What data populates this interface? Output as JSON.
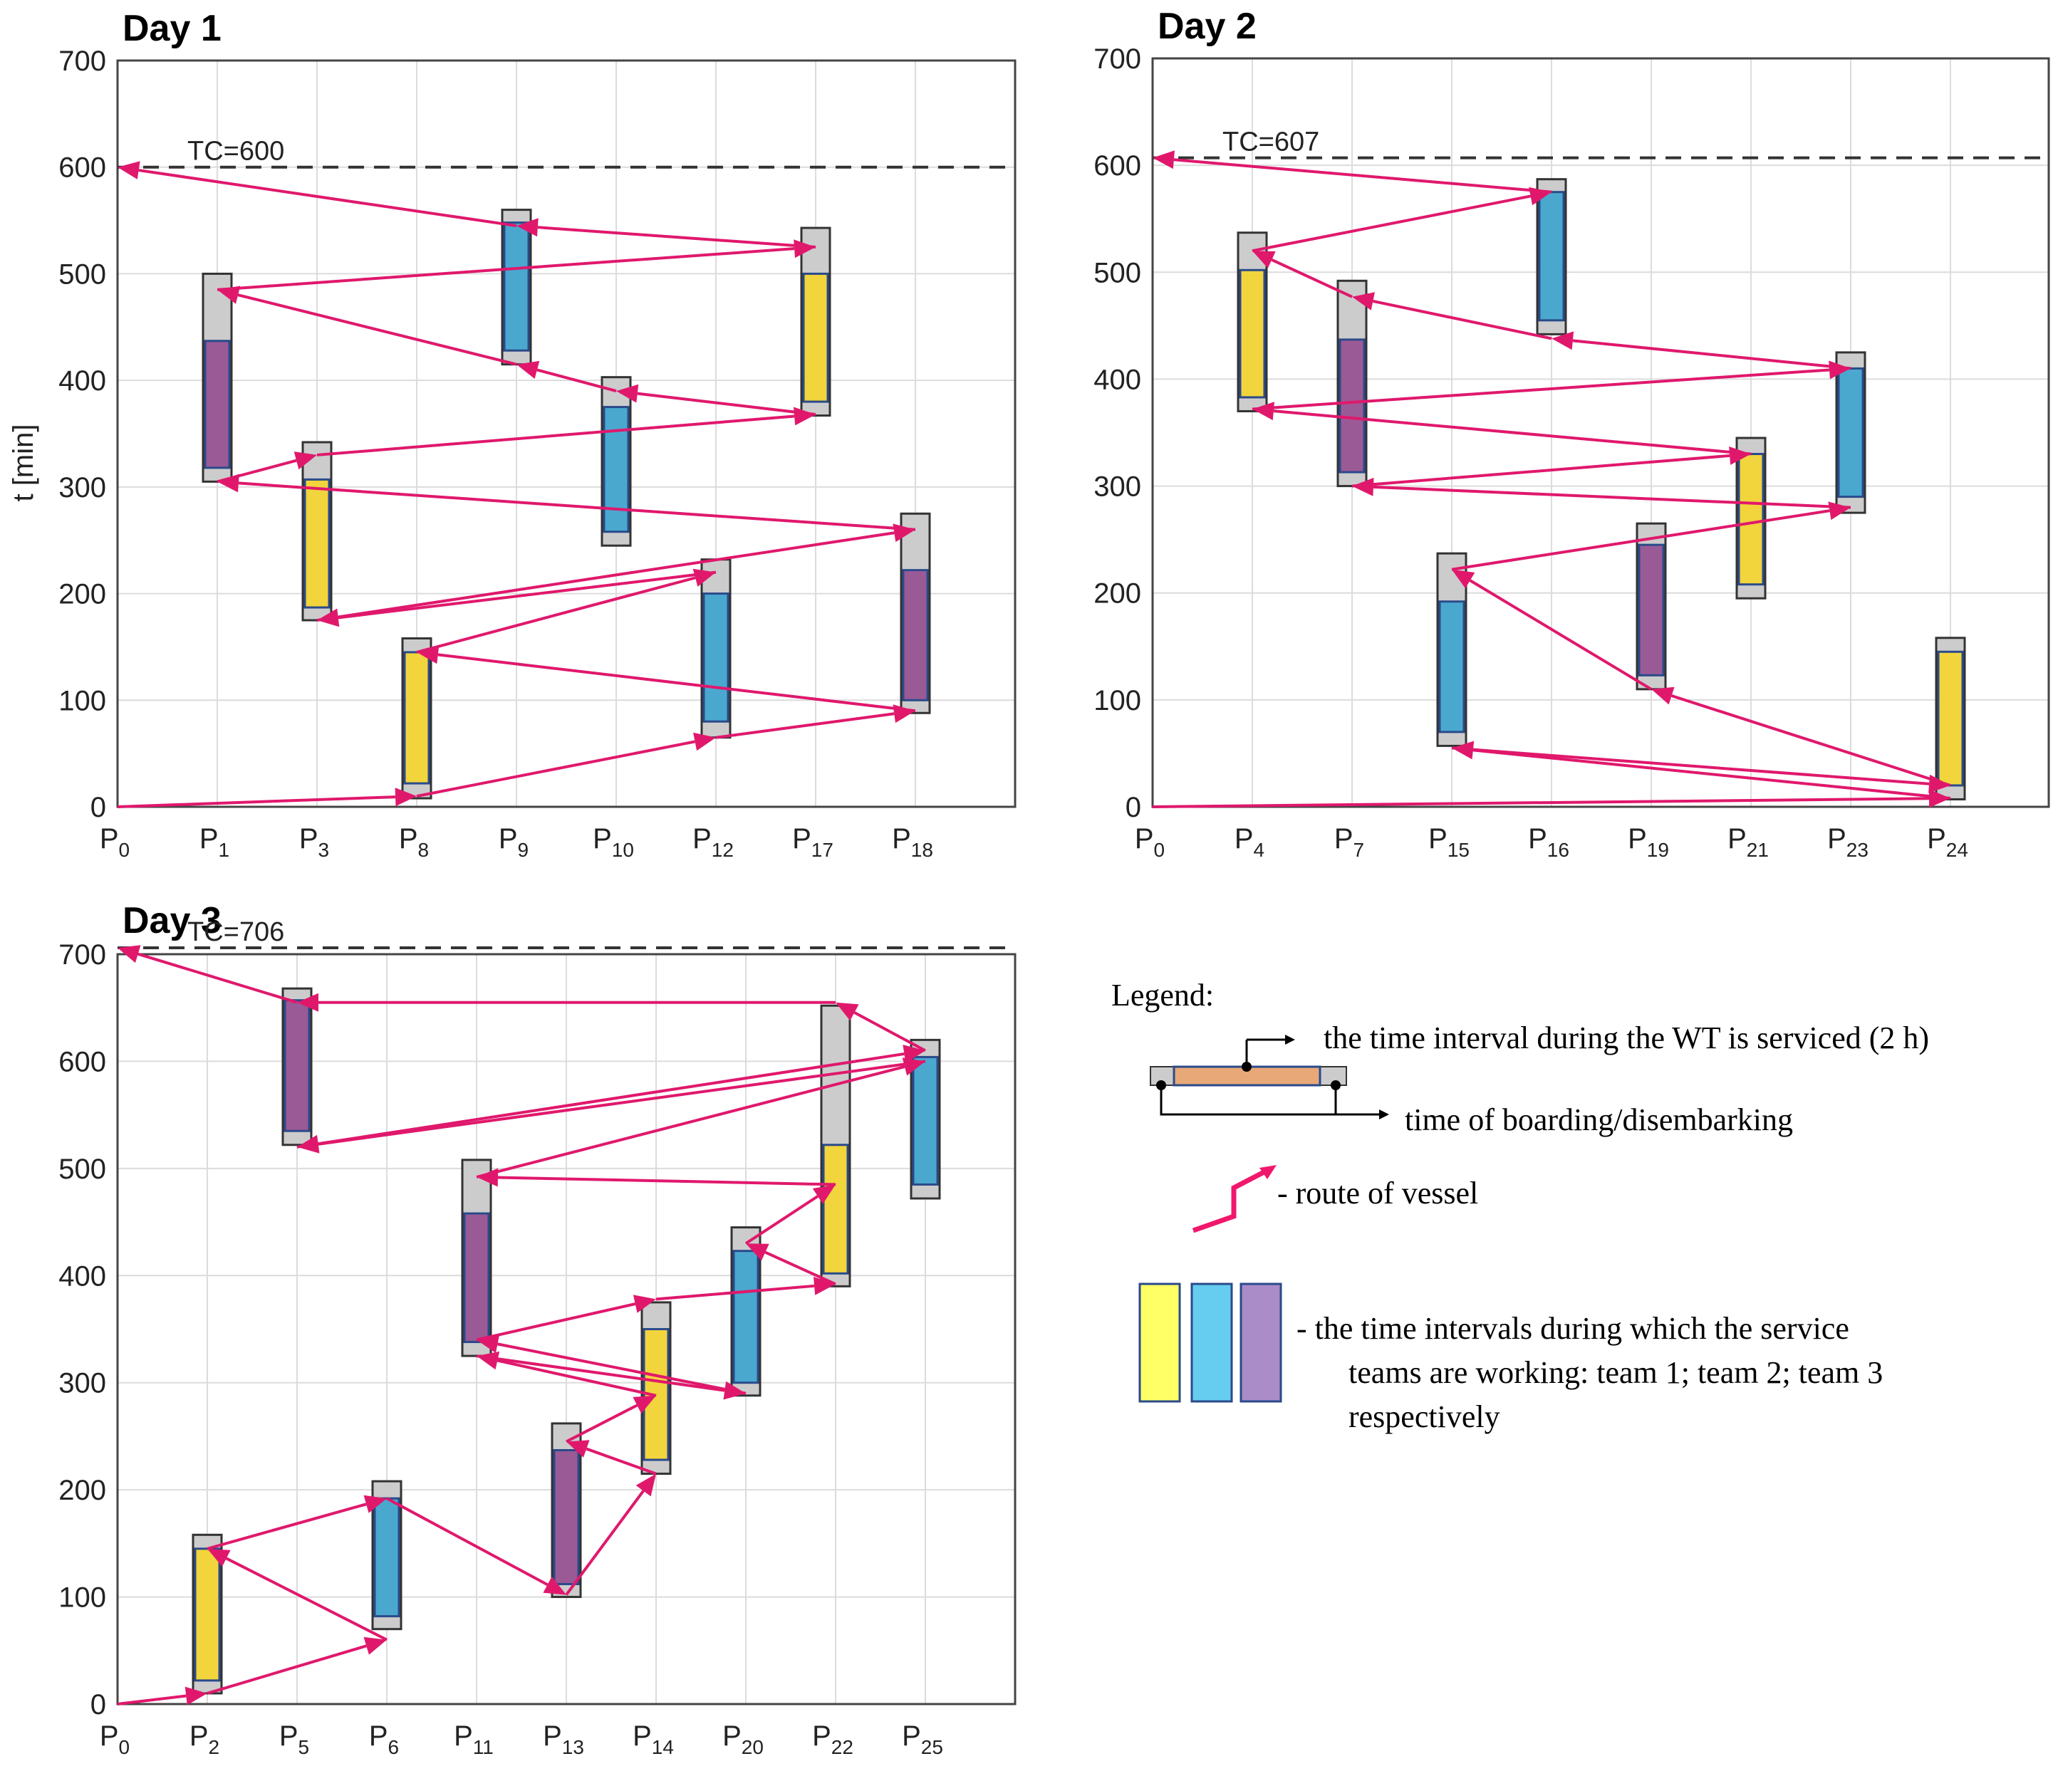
{
  "chart_data": [
    {
      "type": "gantt-route",
      "title": "Day 1",
      "ylabel": "t [min]",
      "ylim": [
        0,
        700
      ],
      "yticks": [
        0,
        100,
        200,
        300,
        400,
        500,
        600,
        700
      ],
      "grid": true,
      "categories": [
        [
          "P",
          "0"
        ],
        [
          "P",
          "1"
        ],
        [
          "P",
          "3"
        ],
        [
          "P",
          "8"
        ],
        [
          "P",
          "9"
        ],
        [
          "P",
          "10"
        ],
        [
          "P",
          "12"
        ],
        [
          "P",
          "17"
        ],
        [
          "P",
          "18"
        ]
      ],
      "tc_label": "TC=600",
      "tc": 600,
      "tasks": [
        {
          "cat": 1,
          "team": 3,
          "total": [
            305,
            500
          ],
          "work": [
            318,
            437
          ]
        },
        {
          "cat": 2,
          "team": 1,
          "total": [
            175,
            342
          ],
          "work": [
            187,
            307
          ]
        },
        {
          "cat": 3,
          "team": 1,
          "total": [
            8,
            158
          ],
          "work": [
            22,
            145
          ]
        },
        {
          "cat": 4,
          "team": 2,
          "total": [
            415,
            560
          ],
          "work": [
            428,
            548
          ]
        },
        {
          "cat": 5,
          "team": 2,
          "total": [
            245,
            403
          ],
          "work": [
            258,
            375
          ]
        },
        {
          "cat": 6,
          "team": 2,
          "total": [
            65,
            232
          ],
          "work": [
            80,
            200
          ]
        },
        {
          "cat": 7,
          "team": 1,
          "total": [
            367,
            543
          ],
          "work": [
            380,
            500
          ]
        },
        {
          "cat": 8,
          "team": 3,
          "total": [
            88,
            275
          ],
          "work": [
            100,
            222
          ]
        }
      ],
      "route": [
        [
          0,
          0
        ],
        [
          3,
          10
        ],
        [
          6,
          65
        ],
        [
          8,
          90
        ],
        [
          3,
          145
        ],
        [
          6,
          220
        ],
        [
          2,
          175
        ],
        [
          8,
          260
        ],
        [
          1,
          305
        ],
        [
          2,
          330
        ],
        [
          7,
          368
        ],
        [
          5,
          390
        ],
        [
          4,
          415
        ],
        [
          1,
          485
        ],
        [
          7,
          525
        ],
        [
          4,
          545
        ],
        [
          0,
          600
        ]
      ]
    },
    {
      "type": "gantt-route",
      "title": "Day 2",
      "ylabel": "",
      "ylim": [
        0,
        700
      ],
      "yticks": [
        0,
        100,
        200,
        300,
        400,
        500,
        600,
        700
      ],
      "grid": true,
      "categories": [
        [
          "P",
          "0"
        ],
        [
          "P",
          "4"
        ],
        [
          "P",
          "7"
        ],
        [
          "P",
          "15"
        ],
        [
          "P",
          "16"
        ],
        [
          "P",
          "19"
        ],
        [
          "P",
          "21"
        ],
        [
          "P",
          "23"
        ],
        [
          "P",
          "24"
        ]
      ],
      "tc_label": "TC=607",
      "tc": 607,
      "tasks": [
        {
          "cat": 1,
          "team": 1,
          "total": [
            370,
            537
          ],
          "work": [
            383,
            502
          ]
        },
        {
          "cat": 2,
          "team": 3,
          "total": [
            300,
            492
          ],
          "work": [
            313,
            437
          ]
        },
        {
          "cat": 3,
          "team": 2,
          "total": [
            57,
            237
          ],
          "work": [
            70,
            192
          ]
        },
        {
          "cat": 4,
          "team": 2,
          "total": [
            442,
            587
          ],
          "work": [
            455,
            575
          ]
        },
        {
          "cat": 5,
          "team": 3,
          "total": [
            110,
            265
          ],
          "work": [
            123,
            245
          ]
        },
        {
          "cat": 6,
          "team": 1,
          "total": [
            195,
            345
          ],
          "work": [
            208,
            330
          ]
        },
        {
          "cat": 7,
          "team": 2,
          "total": [
            275,
            425
          ],
          "work": [
            290,
            410
          ]
        },
        {
          "cat": 8,
          "team": 1,
          "total": [
            7,
            158
          ],
          "work": [
            20,
            145
          ]
        }
      ],
      "route": [
        [
          0,
          0
        ],
        [
          8,
          8
        ],
        [
          3,
          55
        ],
        [
          8,
          20
        ],
        [
          5,
          110
        ],
        [
          3,
          222
        ],
        [
          7,
          280
        ],
        [
          2,
          300
        ],
        [
          6,
          330
        ],
        [
          1,
          372
        ],
        [
          7,
          410
        ],
        [
          4,
          438
        ],
        [
          2,
          477
        ],
        [
          1,
          520
        ],
        [
          4,
          575
        ],
        [
          0,
          607
        ]
      ]
    },
    {
      "type": "gantt-route",
      "title": "Day 3",
      "ylabel": "",
      "ylim": [
        0,
        700
      ],
      "yticks": [
        0,
        100,
        200,
        300,
        400,
        500,
        600,
        700
      ],
      "grid": true,
      "categories": [
        [
          "P",
          "0"
        ],
        [
          "P",
          "2"
        ],
        [
          "P",
          "5"
        ],
        [
          "P",
          "6"
        ],
        [
          "P",
          "11"
        ],
        [
          "P",
          "13"
        ],
        [
          "P",
          "14"
        ],
        [
          "P",
          "20"
        ],
        [
          "P",
          "22"
        ],
        [
          "P",
          "25"
        ]
      ],
      "tc_label": "TC=706",
      "tc": 706,
      "tasks": [
        {
          "cat": 1,
          "team": 1,
          "total": [
            10,
            158
          ],
          "work": [
            22,
            145
          ]
        },
        {
          "cat": 2,
          "team": 3,
          "total": [
            522,
            668
          ],
          "work": [
            535,
            657
          ]
        },
        {
          "cat": 3,
          "team": 2,
          "total": [
            70,
            208
          ],
          "work": [
            82,
            192
          ]
        },
        {
          "cat": 4,
          "team": 3,
          "total": [
            325,
            508
          ],
          "work": [
            338,
            458
          ]
        },
        {
          "cat": 5,
          "team": 3,
          "total": [
            100,
            262
          ],
          "work": [
            112,
            237
          ]
        },
        {
          "cat": 6,
          "team": 1,
          "total": [
            215,
            375
          ],
          "work": [
            228,
            350
          ]
        },
        {
          "cat": 7,
          "team": 2,
          "total": [
            288,
            445
          ],
          "work": [
            300,
            423
          ]
        },
        {
          "cat": 8,
          "team": 1,
          "total": [
            390,
            652
          ],
          "work": [
            402,
            522
          ]
        },
        {
          "cat": 9,
          "team": 2,
          "total": [
            472,
            620
          ],
          "work": [
            485,
            604
          ]
        }
      ],
      "route": [
        [
          0,
          0
        ],
        [
          1,
          10
        ],
        [
          3,
          60
        ],
        [
          1,
          145
        ],
        [
          3,
          192
        ],
        [
          5,
          102
        ],
        [
          6,
          215
        ],
        [
          5,
          245
        ],
        [
          6,
          288
        ],
        [
          4,
          325
        ],
        [
          7,
          290
        ],
        [
          4,
          340
        ],
        [
          6,
          378
        ],
        [
          8,
          392
        ],
        [
          7,
          430
        ],
        [
          8,
          485
        ],
        [
          4,
          492
        ],
        [
          9,
          600
        ],
        [
          2,
          520
        ],
        [
          9,
          610
        ],
        [
          8,
          655
        ],
        [
          2,
          655
        ],
        [
          0,
          706
        ]
      ]
    }
  ],
  "legend": {
    "title": "Legend:",
    "service_interval": "the time interval during the WT is serviced (2 h)",
    "boarding": "time of boarding/disembarking",
    "route": "- route of vessel",
    "teams_line1": "- the time intervals during which the service",
    "teams_line2": "teams are working: team 1; team 2; team 3",
    "teams_line3": "respectively"
  },
  "colors": {
    "team1": "#f2d43c",
    "team2": "#4aa8cf",
    "team3": "#9a5a96",
    "legend_team1": "#ffff66",
    "legend_team2": "#66ccf0",
    "legend_team3": "#a98cc8",
    "route": "#e0186c",
    "overhead": "#cccccc",
    "border": "#333333"
  }
}
